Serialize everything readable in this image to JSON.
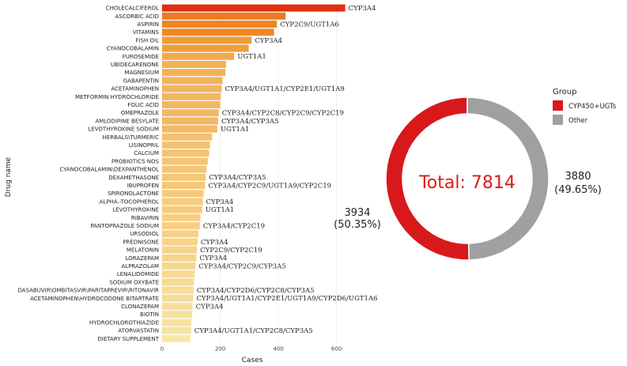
{
  "chart_data": [
    {
      "type": "bar",
      "orientation": "horizontal",
      "xlabel": "Cases",
      "ylabel": "Drug name",
      "xlim": [
        0,
        650
      ],
      "xticks": [
        0,
        200,
        400,
        600
      ],
      "categories": [
        "CHOLECALCIFEROL",
        "ASCORBIC ACID",
        "ASPIRIN",
        "VITAMINS",
        "FISH OIL",
        "CYANOCOBALAMIN",
        "FUROSEMIDE",
        "UBIDECARENONE",
        "MAGNESIUM",
        "GABAPENTIN",
        "ACETAMINOPHEN",
        "METFORMIN HYDROCHLORIDE",
        "FOLIC ACID",
        "OMEPRAZOLE",
        "AMLODIPINE BESYLATE",
        "LEVOTHYROXINE SODIUM",
        "HERBALS\\TURMERIC",
        "LISINOPRIL",
        "CALCIUM",
        "PROBIOTICS NOS",
        "CYANOCOBALAMIN\\DEXPANTHENOL",
        "DEXAMETHASONE",
        "IBUPROFEN",
        "SPIRONOLACTONE",
        ".ALPHA.-TOCOPHEROL",
        "LEVOTHYROXINE",
        "RIBAVIRIN",
        "PANTOPRAZOLE SODIUM",
        "URSODIOL",
        "PREDNISONE",
        "MELATONIN",
        "LORAZEPAM",
        "ALPRAZOLAM",
        "LENALIDOMIDE",
        "SODIUM OXYBATE",
        "DASABUVIR\\OMBITASVIR\\PARITAPREVIR\\RITONAVIR",
        "ACETAMINOPHEN\\HYDROCODONE BITARTRATE",
        "CLONAZEPAM",
        "BIOTIN",
        "HYDROCHLOROTHIAZIDE",
        "ATORVASTATIN",
        "DIETARY SUPPLEMENT"
      ],
      "values": [
        630,
        425,
        395,
        385,
        308,
        298,
        248,
        220,
        218,
        208,
        205,
        202,
        200,
        195,
        193,
        190,
        172,
        165,
        162,
        157,
        153,
        150,
        148,
        143,
        140,
        138,
        132,
        130,
        125,
        122,
        120,
        118,
        115,
        112,
        110,
        108,
        107,
        105,
        103,
        101,
        100,
        98
      ],
      "enzymes": [
        "CYP3A4",
        "",
        "CYP2C9/UGT1A6",
        "",
        "CYP3A4",
        "",
        "UGT1A1",
        "",
        "",
        "",
        "CYP3A4/UGT1A1/CYP2E1/UGT1A9",
        "",
        "",
        "CYP3A4/CYP2C8/CYP2C9/CYP2C19",
        "CYP3A4/CYP3A5",
        "UGT1A1",
        "",
        "",
        "",
        "",
        "",
        "CYP3A4/CYP3A5",
        "CYP3A4/CYP2C9/UGT1A9/CYP2C19",
        "",
        "CYP3A4",
        "UGT1A1",
        "",
        "CYP3A4/CYP2C19",
        "",
        "CYP3A4",
        "CYP2C9/CYP2C19",
        "CYP3A4",
        "CYP3A4/CYP2C9/CYP3A5",
        "",
        "",
        "CYP3A4/CYP2D6/CYP2C8/CYP3A5",
        "CYP3A4/UGT1A1/CYP2E1/UGT1A9/CYP2D6/UGT1A6",
        "CYP3A4",
        "",
        "",
        "CYP3A4/UGT1A1/CYP2C8/CYP3A5",
        ""
      ],
      "color_high": "#e03010",
      "color_mid": "#f0902a",
      "color_low": "#f8e8a8"
    },
    {
      "type": "pie",
      "style": "donut",
      "center_label": "Total: 7814",
      "center_color": "#dd1a1a",
      "legend_title": "Group",
      "legend_position": "right",
      "slices": [
        {
          "name": "CYP450+UGTs",
          "value": 3934,
          "count_text": "3934",
          "pct_text": "(50.35%)",
          "color": "#d7191c"
        },
        {
          "name": "Other",
          "value": 3880,
          "count_text": "3880",
          "pct_text": "(49.65%)",
          "color": "#a0a0a0"
        }
      ]
    }
  ]
}
